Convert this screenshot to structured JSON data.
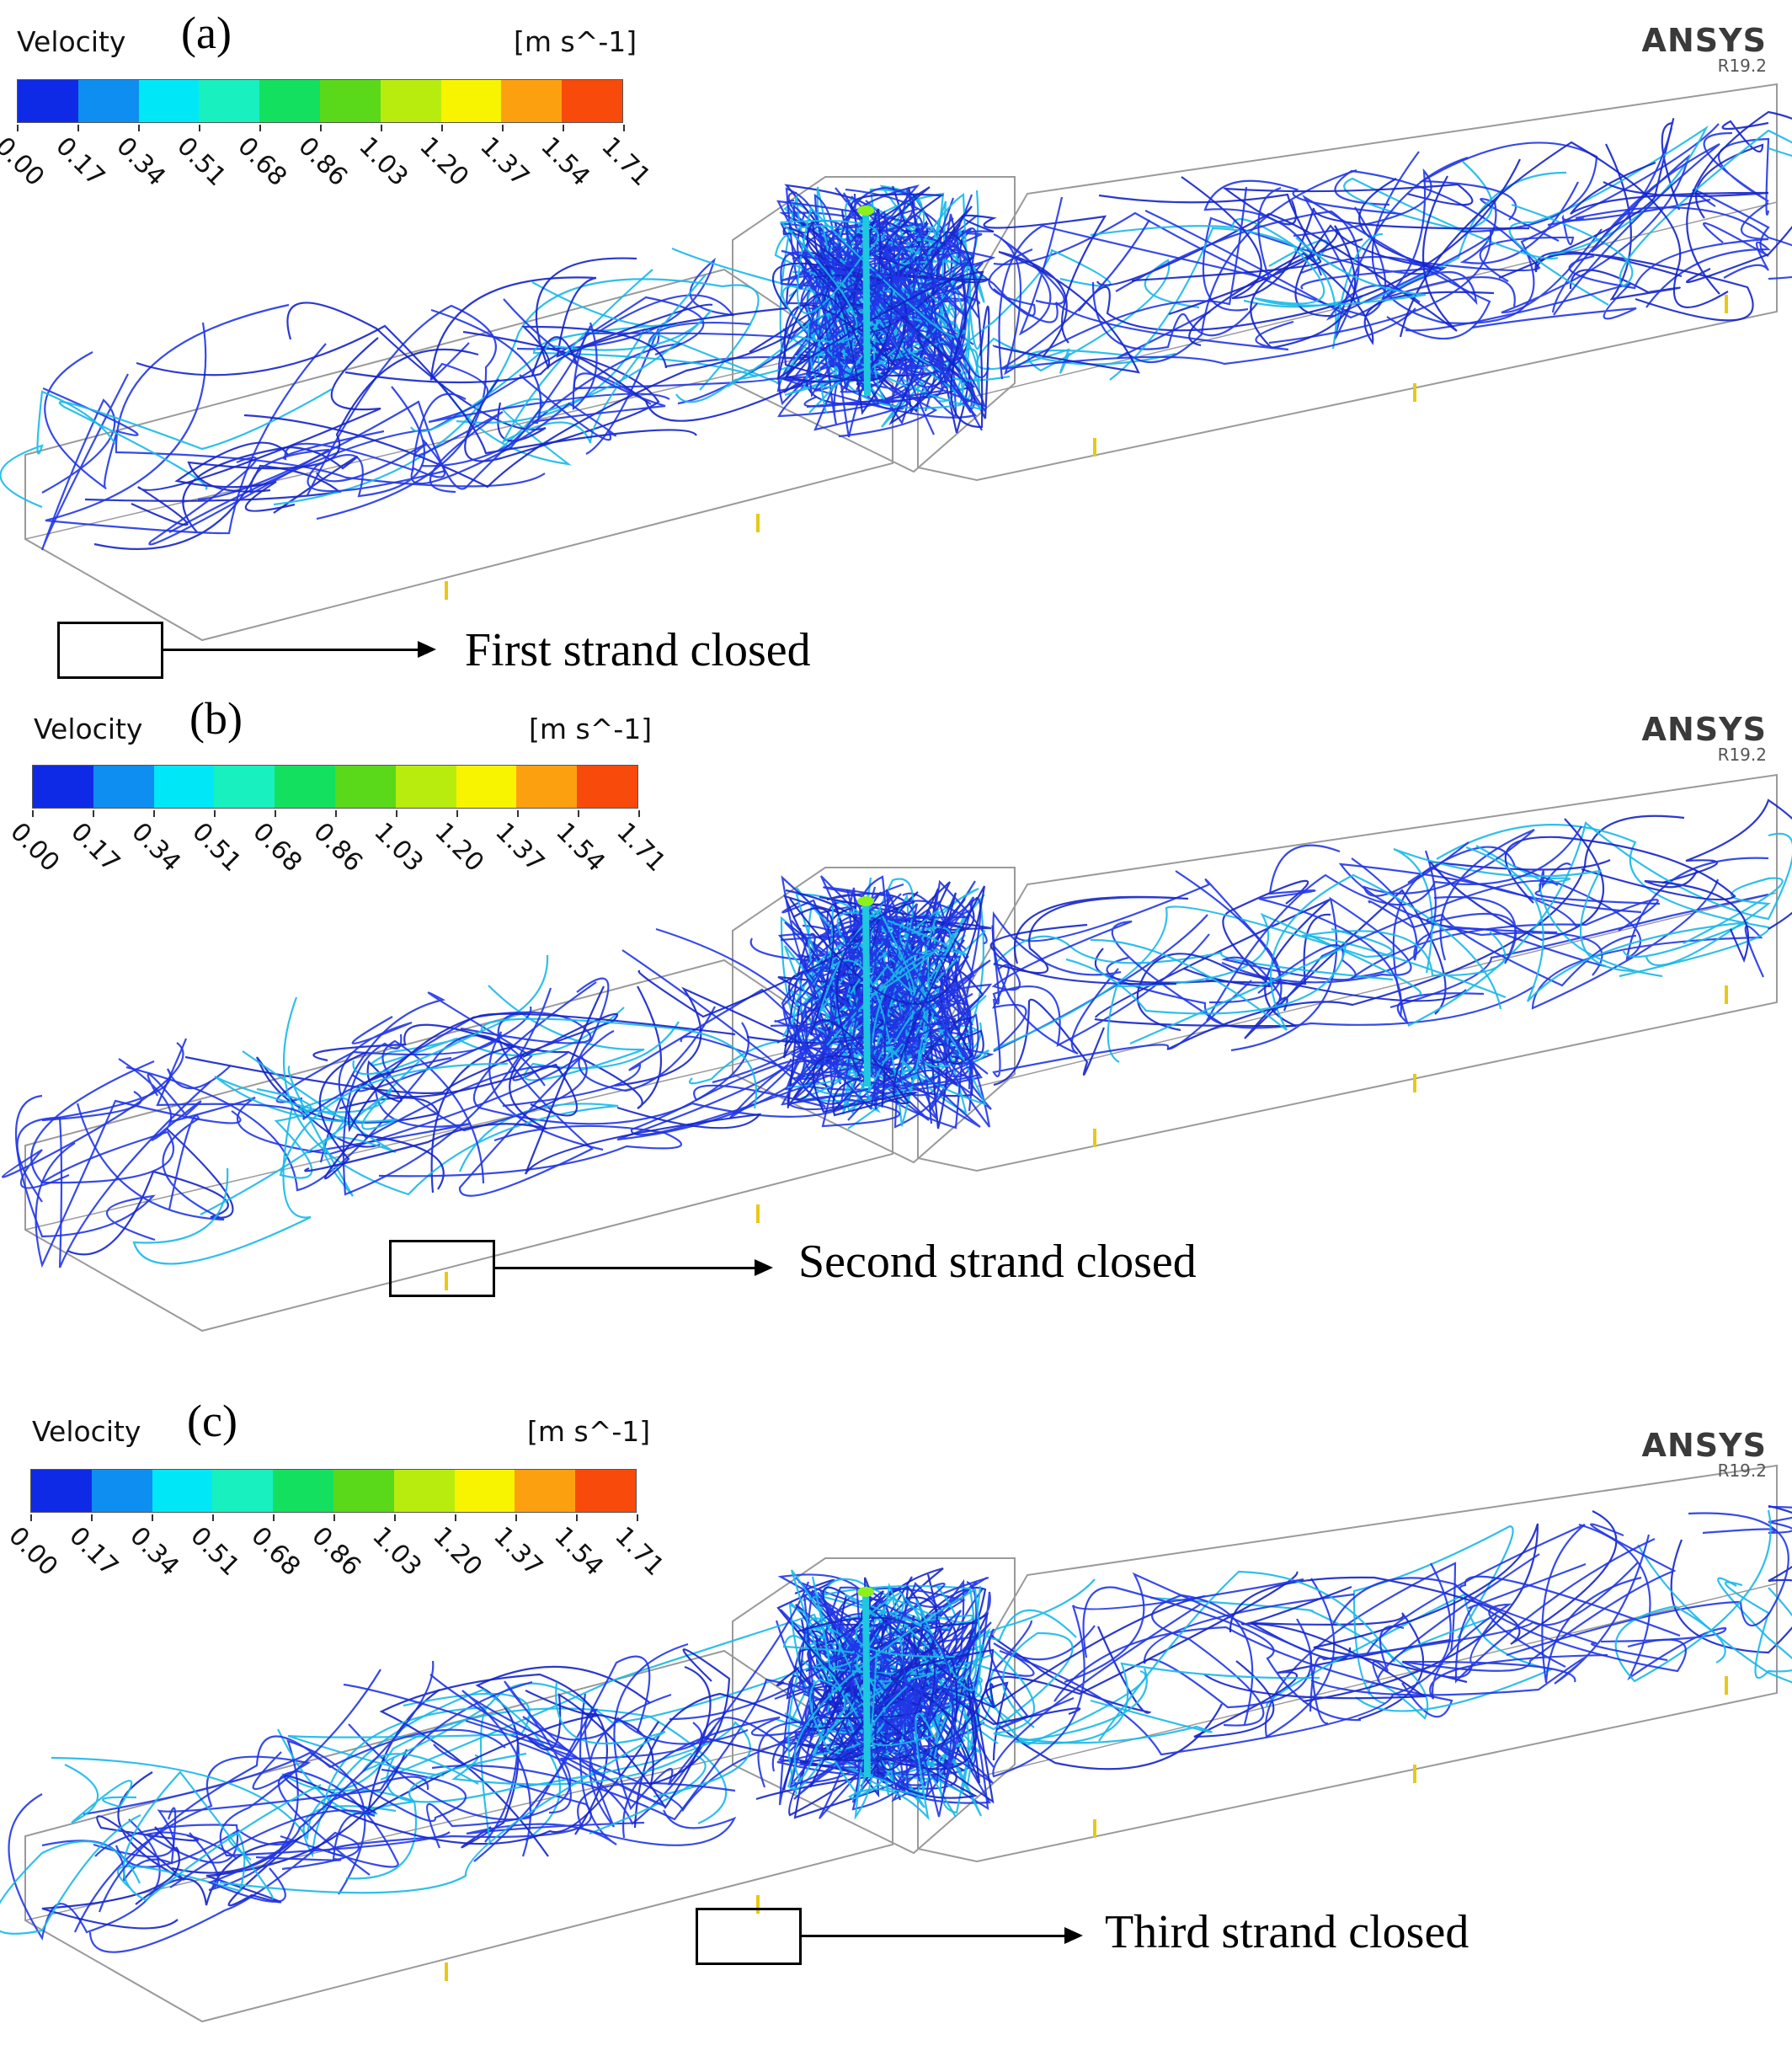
{
  "colorbar": {
    "title": "Velocity",
    "unit": "[m s^-1]",
    "ticks": [
      "0.00",
      "0.17",
      "0.34",
      "0.51",
      "0.68",
      "0.86",
      "1.03",
      "1.20",
      "1.37",
      "1.54",
      "1.71"
    ],
    "colors": [
      "#0f2ae6",
      "#0e8ef0",
      "#00e8f8",
      "#19f0c0",
      "#14e060",
      "#5ad81a",
      "#b8ec0e",
      "#f8f400",
      "#fca010",
      "#f84a0a"
    ]
  },
  "brand": {
    "name": "ANSYS",
    "version": "R19.2"
  },
  "colors": {
    "streamline": "#2136e6",
    "streamline_dark": "#1424c8",
    "streamline_fast": "#18b8e8",
    "outline": "#9a9a9a"
  },
  "panels": [
    {
      "letter": "(a)",
      "callout": "First strand closed"
    },
    {
      "letter": "(b)",
      "callout": "Second strand closed"
    },
    {
      "letter": "(c)",
      "callout": "Third strand closed"
    }
  ]
}
